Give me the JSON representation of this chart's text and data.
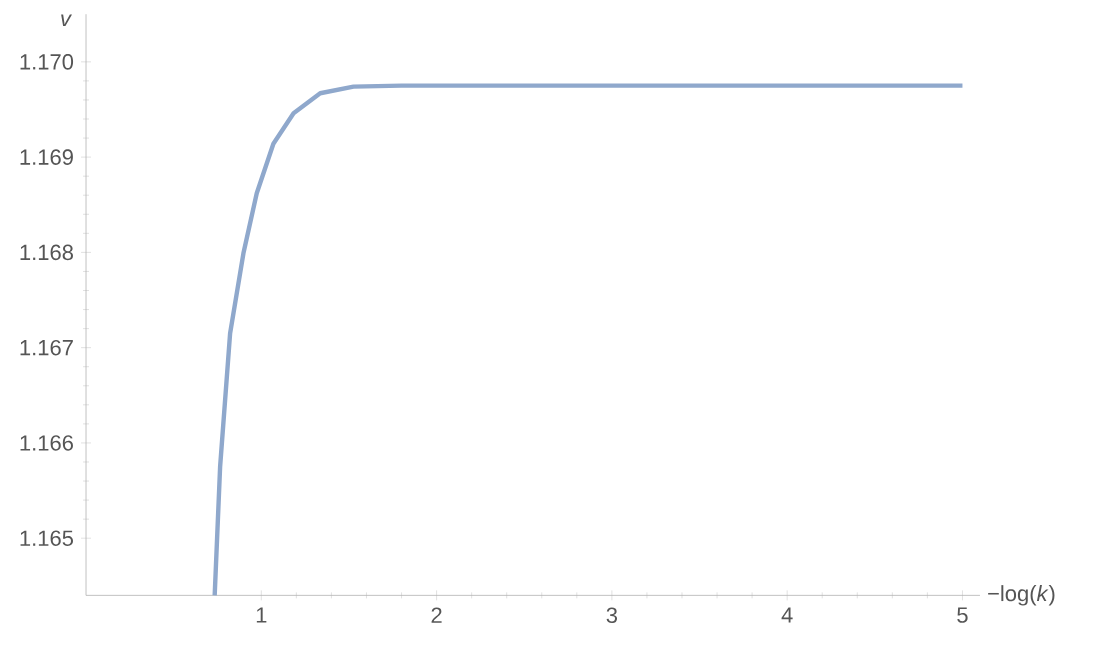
{
  "chart_data": {
    "type": "line",
    "xlabel": "−log(*k*)",
    "ylabel": "v",
    "xlim": [
      0,
      5.1
    ],
    "ylim": [
      1.1644,
      1.1705
    ],
    "xticks": [
      1,
      2,
      3,
      4,
      5
    ],
    "yticks": [
      {
        "value": 1.165,
        "label": "1.165"
      },
      {
        "value": 1.166,
        "label": "1.166"
      },
      {
        "value": 1.167,
        "label": "1.167"
      },
      {
        "value": 1.168,
        "label": "1.168"
      },
      {
        "value": 1.169,
        "label": "1.169"
      },
      {
        "value": 1.17,
        "label": "1.170"
      }
    ],
    "grid": false,
    "series": [
      {
        "color": "#8fa8cc",
        "x": [
          0.734,
          0.765,
          0.822,
          0.898,
          0.974,
          1.069,
          1.184,
          1.336,
          1.526,
          1.8,
          2.5,
          3,
          4,
          5
        ],
        "values": [
          1.1644,
          1.16575,
          1.16715,
          1.16799,
          1.16862,
          1.16914,
          1.16946,
          1.16967,
          1.16974,
          1.16975,
          1.16975,
          1.16975,
          1.16975,
          1.16975
        ]
      }
    ]
  }
}
